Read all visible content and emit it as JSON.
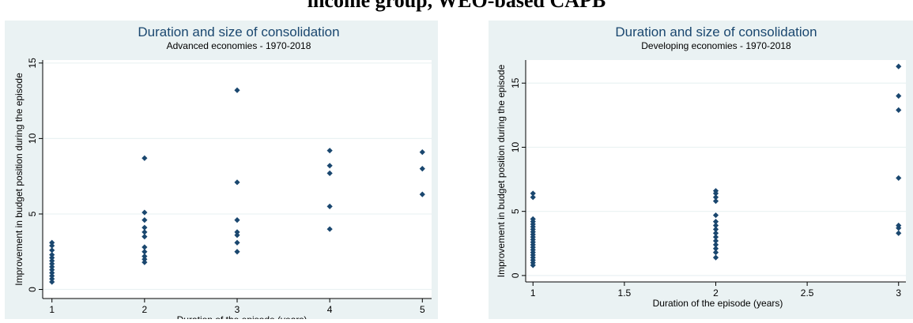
{
  "page_title": "income group, WEO-based CAPB",
  "chart_data": [
    {
      "type": "scatter",
      "title": "Duration and size of consolidation",
      "subtitle": "Advanced economies - 1970-2018",
      "xlabel": "Duration of the episode (years)",
      "ylabel": "Improvement in budget position during the episode",
      "xlim": [
        0.9,
        5.1
      ],
      "ylim": [
        -0.6,
        15.2
      ],
      "xticks": [
        "1",
        "2",
        "3",
        "4",
        "5"
      ],
      "yticks": [
        "0",
        "5",
        "10",
        "15"
      ],
      "grid": true,
      "marker_color": "#1a476f",
      "points": [
        [
          1,
          0.5
        ],
        [
          1,
          0.7
        ],
        [
          1,
          0.9
        ],
        [
          1,
          1.1
        ],
        [
          1,
          1.3
        ],
        [
          1,
          1.5
        ],
        [
          1,
          1.7
        ],
        [
          1,
          1.9
        ],
        [
          1,
          2.1
        ],
        [
          1,
          2.3
        ],
        [
          1,
          2.6
        ],
        [
          1,
          2.9
        ],
        [
          1,
          3.1
        ],
        [
          2,
          1.8
        ],
        [
          2,
          2.0
        ],
        [
          2,
          2.2
        ],
        [
          2,
          2.5
        ],
        [
          2,
          2.8
        ],
        [
          2,
          3.5
        ],
        [
          2,
          3.8
        ],
        [
          2,
          4.1
        ],
        [
          2,
          4.6
        ],
        [
          2,
          5.1
        ],
        [
          2,
          8.7
        ],
        [
          3,
          2.5
        ],
        [
          3,
          3.1
        ],
        [
          3,
          3.6
        ],
        [
          3,
          3.8
        ],
        [
          3,
          4.6
        ],
        [
          3,
          7.1
        ],
        [
          3,
          13.2
        ],
        [
          4,
          4.0
        ],
        [
          4,
          5.5
        ],
        [
          4,
          7.7
        ],
        [
          4,
          8.2
        ],
        [
          4,
          9.2
        ],
        [
          5,
          6.3
        ],
        [
          5,
          8.0
        ],
        [
          5,
          9.1
        ]
      ]
    },
    {
      "type": "scatter",
      "title": "Duration and size of consolidation",
      "subtitle": "Developing economies - 1970-2018",
      "xlabel": "Duration of the episode (years)",
      "ylabel": "Improvement in budget position during the episode",
      "xlim": [
        0.96,
        3.04
      ],
      "ylim": [
        -0.5,
        16.8
      ],
      "xticks": [
        "1",
        "1.5",
        "2",
        "2.5",
        "3"
      ],
      "yticks": [
        "0",
        "5",
        "10",
        "15"
      ],
      "grid": true,
      "marker_color": "#1a476f",
      "points": [
        [
          1,
          0.8
        ],
        [
          1,
          1.0
        ],
        [
          1,
          1.2
        ],
        [
          1,
          1.4
        ],
        [
          1,
          1.6
        ],
        [
          1,
          1.8
        ],
        [
          1,
          2.0
        ],
        [
          1,
          2.2
        ],
        [
          1,
          2.4
        ],
        [
          1,
          2.6
        ],
        [
          1,
          2.8
        ],
        [
          1,
          3.0
        ],
        [
          1,
          3.2
        ],
        [
          1,
          3.4
        ],
        [
          1,
          3.6
        ],
        [
          1,
          3.8
        ],
        [
          1,
          4.0
        ],
        [
          1,
          4.2
        ],
        [
          1,
          4.4
        ],
        [
          1,
          6.1
        ],
        [
          1,
          6.4
        ],
        [
          2,
          1.4
        ],
        [
          2,
          1.8
        ],
        [
          2,
          2.1
        ],
        [
          2,
          2.4
        ],
        [
          2,
          2.7
        ],
        [
          2,
          3.0
        ],
        [
          2,
          3.3
        ],
        [
          2,
          3.6
        ],
        [
          2,
          3.9
        ],
        [
          2,
          4.2
        ],
        [
          2,
          4.7
        ],
        [
          2,
          5.8
        ],
        [
          2,
          6.1
        ],
        [
          2,
          6.4
        ],
        [
          2,
          6.6
        ],
        [
          3,
          3.3
        ],
        [
          3,
          3.7
        ],
        [
          3,
          3.9
        ],
        [
          3,
          7.6
        ],
        [
          3,
          12.9
        ],
        [
          3,
          14.0
        ],
        [
          3,
          16.3
        ]
      ]
    }
  ]
}
